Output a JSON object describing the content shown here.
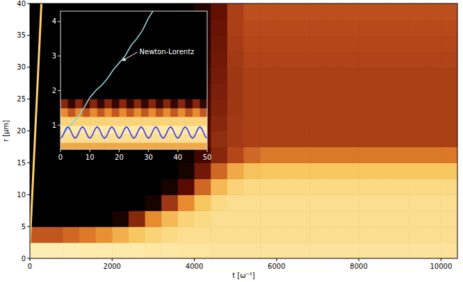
{
  "chart_data": [
    {
      "type": "heatmap",
      "xlabel": "t [ω⁻¹]",
      "ylabel": "r [μm]",
      "xlim": [
        0,
        10400
      ],
      "ylim": [
        0,
        40
      ],
      "xticks": [
        0,
        2000,
        4000,
        6000,
        8000,
        10000
      ],
      "yticks": [
        0,
        5,
        10,
        15,
        20,
        25,
        30,
        35,
        40
      ],
      "x_edges": [
        0,
        400,
        800,
        1200,
        1600,
        2000,
        2400,
        2800,
        3200,
        3600,
        4000,
        4400,
        4800,
        5200,
        5600,
        6000,
        6400,
        6800,
        7200,
        7600,
        8000,
        8400,
        8800,
        9200,
        9600,
        10000,
        10400
      ],
      "y_edges": [
        0,
        2.5,
        5,
        7.5,
        10,
        12.5,
        15,
        17.5,
        20,
        22.5,
        25,
        27.5,
        30,
        32.5,
        35,
        37.5,
        40
      ],
      "zlim": [
        0,
        1
      ],
      "cells": [
        [
          0.97,
          0.97,
          0.97,
          0.96,
          0.96,
          0.95,
          0.95,
          0.94,
          0.94,
          0.93,
          0.93,
          0.92,
          0.92,
          0.92,
          0.92,
          0.92,
          0.92,
          0.92,
          0.92,
          0.92,
          0.92,
          0.92,
          0.92,
          0.92,
          0.92,
          0.92
        ],
        [
          0.45,
          0.45,
          0.5,
          0.55,
          0.62,
          0.72,
          0.8,
          0.85,
          0.88,
          0.9,
          0.9,
          0.9,
          0.9,
          0.9,
          0.9,
          0.9,
          0.9,
          0.9,
          0.9,
          0.9,
          0.9,
          0.9,
          0.9,
          0.9,
          0.9,
          0.9
        ],
        [
          0,
          0,
          0,
          0,
          0,
          0.05,
          0.3,
          0.6,
          0.75,
          0.85,
          0.88,
          0.9,
          0.9,
          0.9,
          0.9,
          0.9,
          0.9,
          0.9,
          0.9,
          0.9,
          0.9,
          0.9,
          0.9,
          0.9,
          0.9,
          0.9
        ],
        [
          0,
          0,
          0,
          0,
          0,
          0,
          0,
          0.05,
          0.35,
          0.6,
          0.8,
          0.88,
          0.9,
          0.9,
          0.9,
          0.9,
          0.9,
          0.9,
          0.9,
          0.9,
          0.9,
          0.9,
          0.9,
          0.9,
          0.9,
          0.9
        ],
        [
          0,
          0,
          0,
          0,
          0,
          0,
          0,
          0,
          0.05,
          0.2,
          0.5,
          0.75,
          0.85,
          0.88,
          0.88,
          0.88,
          0.88,
          0.88,
          0.88,
          0.88,
          0.88,
          0.88,
          0.88,
          0.88,
          0.88,
          0.88
        ],
        [
          0,
          0,
          0,
          0,
          0,
          0,
          0,
          0,
          0,
          0.05,
          0.25,
          0.5,
          0.7,
          0.78,
          0.8,
          0.8,
          0.8,
          0.8,
          0.8,
          0.8,
          0.8,
          0.8,
          0.8,
          0.8,
          0.8,
          0.8
        ],
        [
          0,
          0,
          0,
          0,
          0,
          0,
          0,
          0,
          0,
          0.03,
          0.15,
          0.3,
          0.4,
          0.5,
          0.55,
          0.55,
          0.55,
          0.55,
          0.55,
          0.55,
          0.55,
          0.55,
          0.55,
          0.55,
          0.55,
          0.55
        ],
        [
          0,
          0,
          0,
          0,
          0,
          0,
          0,
          0,
          0,
          0.08,
          0.2,
          0.32,
          0.36,
          0.38,
          0.38,
          0.38,
          0.38,
          0.38,
          0.38,
          0.38,
          0.38,
          0.38,
          0.38,
          0.38,
          0.38,
          0.38
        ],
        [
          0,
          0,
          0,
          0,
          0,
          0,
          0,
          0,
          0,
          0.06,
          0.18,
          0.3,
          0.36,
          0.38,
          0.38,
          0.38,
          0.38,
          0.38,
          0.38,
          0.38,
          0.38,
          0.38,
          0.38,
          0.38,
          0.38,
          0.38
        ],
        [
          0,
          0,
          0,
          0,
          0,
          0,
          0,
          0,
          0,
          0.05,
          0.16,
          0.28,
          0.35,
          0.38,
          0.38,
          0.38,
          0.38,
          0.38,
          0.38,
          0.38,
          0.38,
          0.38,
          0.38,
          0.38,
          0.38,
          0.38
        ],
        [
          0,
          0,
          0,
          0,
          0,
          0,
          0,
          0,
          0,
          0.04,
          0.14,
          0.27,
          0.35,
          0.38,
          0.38,
          0.38,
          0.38,
          0.38,
          0.38,
          0.38,
          0.38,
          0.38,
          0.38,
          0.38,
          0.38,
          0.38
        ],
        [
          0,
          0,
          0,
          0,
          0,
          0,
          0,
          0,
          0,
          0.03,
          0.12,
          0.26,
          0.35,
          0.38,
          0.38,
          0.38,
          0.38,
          0.38,
          0.38,
          0.38,
          0.38,
          0.38,
          0.38,
          0.38,
          0.38,
          0.38
        ],
        [
          0,
          0,
          0,
          0,
          0,
          0,
          0,
          0,
          0,
          0.02,
          0.1,
          0.25,
          0.36,
          0.39,
          0.39,
          0.39,
          0.39,
          0.39,
          0.39,
          0.39,
          0.39,
          0.39,
          0.39,
          0.39,
          0.39,
          0.39
        ],
        [
          0,
          0,
          0,
          0,
          0,
          0,
          0,
          0,
          0,
          0.02,
          0.09,
          0.24,
          0.37,
          0.4,
          0.4,
          0.4,
          0.4,
          0.4,
          0.4,
          0.4,
          0.4,
          0.4,
          0.4,
          0.4,
          0.4,
          0.4
        ],
        [
          0,
          0,
          0,
          0,
          0,
          0,
          0,
          0,
          0,
          0.01,
          0.08,
          0.23,
          0.38,
          0.41,
          0.41,
          0.41,
          0.41,
          0.41,
          0.41,
          0.41,
          0.41,
          0.41,
          0.41,
          0.41,
          0.41,
          0.41
        ],
        [
          0,
          0,
          0,
          0,
          0,
          0,
          0,
          0,
          0,
          0.01,
          0.08,
          0.22,
          0.38,
          0.43,
          0.43,
          0.43,
          0.43,
          0.43,
          0.43,
          0.43,
          0.43,
          0.43,
          0.43,
          0.43,
          0.43,
          0.43
        ]
      ],
      "series": [
        {
          "type": "line",
          "color": "#ffcf70",
          "x": [
            0,
            280
          ],
          "values": [
            2.3,
            40
          ]
        }
      ]
    },
    {
      "type": "heatmap",
      "xlim": [
        0,
        50
      ],
      "ylim": [
        0.3,
        4.3
      ],
      "xticks": [
        0,
        10,
        20,
        30,
        40,
        50
      ],
      "yticks": [
        1,
        2,
        3,
        4
      ],
      "x_edges": [
        0,
        2.5,
        5,
        7.5,
        10,
        12.5,
        15,
        17.5,
        20,
        22.5,
        25,
        27.5,
        30,
        32.5,
        35,
        37.5,
        40,
        42.5,
        45,
        47.5,
        50
      ],
      "y_edges": [
        0.3,
        0.5,
        0.75,
        1.0,
        1.25,
        1.5,
        1.75
      ],
      "zlim": [
        0,
        1
      ],
      "cells": [
        [
          0.7,
          0.7,
          0.7,
          0.7,
          0.7,
          0.7,
          0.7,
          0.7,
          0.7,
          0.7,
          0.7,
          0.7,
          0.7,
          0.7,
          0.7,
          0.7,
          0.7,
          0.7,
          0.7,
          0.7
        ],
        [
          0.9,
          0.9,
          0.9,
          0.9,
          0.9,
          0.9,
          0.9,
          0.9,
          0.9,
          0.9,
          0.9,
          0.9,
          0.9,
          0.9,
          0.9,
          0.9,
          0.9,
          0.9,
          0.9,
          0.9
        ],
        [
          0.95,
          0.95,
          0.95,
          0.95,
          0.95,
          0.95,
          0.95,
          0.95,
          0.95,
          0.95,
          0.95,
          0.95,
          0.95,
          0.95,
          0.95,
          0.95,
          0.95,
          0.95,
          0.95,
          0.95
        ],
        [
          0.85,
          0.85,
          0.85,
          0.85,
          0.85,
          0.85,
          0.85,
          0.85,
          0.85,
          0.85,
          0.85,
          0.85,
          0.85,
          0.85,
          0.85,
          0.85,
          0.85,
          0.85,
          0.85,
          0.85
        ],
        [
          0.6,
          0.45,
          0.6,
          0.45,
          0.6,
          0.45,
          0.6,
          0.45,
          0.6,
          0.45,
          0.6,
          0.45,
          0.6,
          0.45,
          0.6,
          0.45,
          0.6,
          0.45,
          0.6,
          0.45
        ],
        [
          0.3,
          0.12,
          0.3,
          0.12,
          0.3,
          0.12,
          0.3,
          0.12,
          0.3,
          0.12,
          0.3,
          0.12,
          0.3,
          0.12,
          0.3,
          0.12,
          0.3,
          0.12,
          0.3,
          0.12
        ]
      ],
      "series": [
        {
          "type": "line",
          "color": "#8fd3d3",
          "x": [
            0,
            2,
            4,
            5,
            6,
            8,
            10,
            12,
            14,
            16,
            18,
            20,
            22,
            24,
            26,
            28,
            30,
            31.5
          ],
          "values": [
            0.62,
            0.85,
            1.05,
            1.15,
            1.25,
            1.5,
            1.8,
            2.0,
            2.15,
            2.35,
            2.6,
            2.8,
            3.0,
            3.3,
            3.5,
            3.75,
            4.1,
            4.3
          ]
        },
        {
          "type": "line",
          "color": "#3a3af0",
          "x": [
            0,
            0.625,
            1.25,
            1.875,
            2.5,
            3.125,
            3.75,
            4.375,
            5,
            5.625,
            6.25,
            6.875,
            7.5,
            8.125,
            8.75,
            9.375,
            10,
            10.625,
            11.25,
            11.875,
            12.5,
            13.125,
            13.75,
            14.375,
            15,
            15.625,
            16.25,
            16.875,
            17.5,
            18.125,
            18.75,
            19.375,
            20,
            20.625,
            21.25,
            21.875,
            22.5,
            23.125,
            23.75,
            24.375,
            25,
            25.625,
            26.25,
            26.875,
            27.5,
            28.125,
            28.75,
            29.375,
            30,
            30.625,
            31.25,
            31.875,
            32.5,
            33.125,
            33.75,
            34.375,
            35,
            35.625,
            36.25,
            36.875,
            37.5,
            38.125,
            38.75,
            39.375,
            40,
            40.625,
            41.25,
            41.875,
            42.5,
            43.125,
            43.75,
            44.375,
            45,
            45.625,
            46.25,
            46.875,
            47.5,
            48.125,
            48.75,
            49.375,
            50
          ],
          "values": [
            0.62,
            0.67,
            0.785,
            0.9,
            0.95,
            0.9,
            0.785,
            0.67,
            0.62,
            0.67,
            0.785,
            0.9,
            0.95,
            0.9,
            0.785,
            0.67,
            0.62,
            0.67,
            0.785,
            0.9,
            0.95,
            0.9,
            0.785,
            0.67,
            0.62,
            0.67,
            0.785,
            0.9,
            0.95,
            0.9,
            0.785,
            0.67,
            0.62,
            0.67,
            0.785,
            0.9,
            0.95,
            0.9,
            0.785,
            0.67,
            0.62,
            0.67,
            0.785,
            0.9,
            0.95,
            0.9,
            0.785,
            0.67,
            0.62,
            0.67,
            0.785,
            0.9,
            0.95,
            0.9,
            0.785,
            0.67,
            0.62,
            0.67,
            0.785,
            0.9,
            0.95,
            0.9,
            0.785,
            0.67,
            0.62,
            0.67,
            0.785,
            0.9,
            0.95,
            0.9,
            0.785,
            0.67,
            0.62,
            0.67,
            0.785,
            0.9,
            0.95,
            0.9,
            0.785,
            0.67,
            0.62
          ]
        }
      ],
      "annotations": [
        {
          "text": "Newton-Lorentz",
          "x": 20.5,
          "y": 2.85
        }
      ]
    }
  ]
}
